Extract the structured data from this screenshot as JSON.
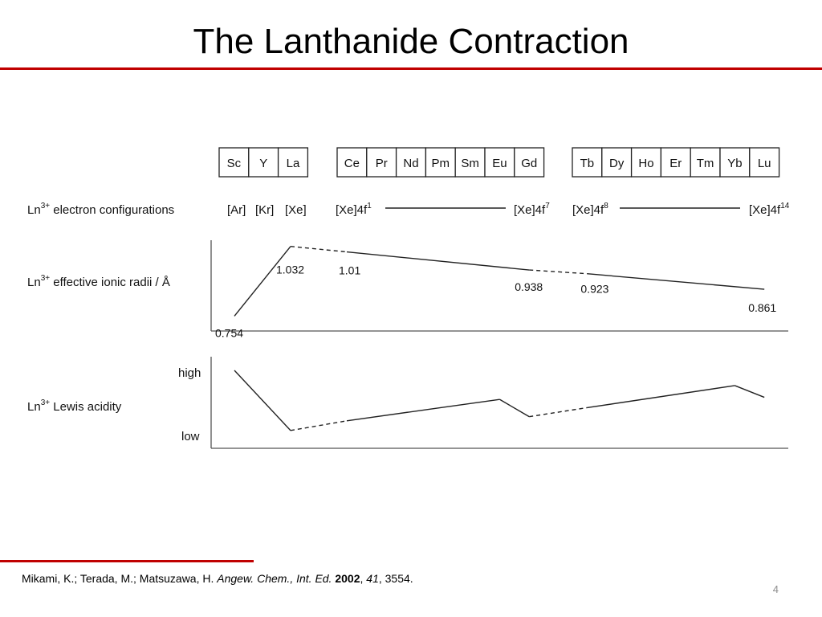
{
  "title": "The Lanthanide Contraction",
  "colors": {
    "accent": "#c00000",
    "axis": "#555555",
    "line": "#222222",
    "text": "#111111",
    "page_number": "#8c8c8c"
  },
  "element_groups": [
    {
      "name": "group3",
      "elements": [
        "Sc",
        "Y",
        "La"
      ]
    },
    {
      "name": "early-lanthanides",
      "elements": [
        "Ce",
        "Pr",
        "Nd",
        "Pm",
        "Sm",
        "Eu",
        "Gd"
      ]
    },
    {
      "name": "late-lanthanides",
      "elements": [
        "Tb",
        "Dy",
        "Ho",
        "Er",
        "Tm",
        "Yb",
        "Lu"
      ]
    }
  ],
  "rows": {
    "configurations": {
      "label": "Ln",
      "label_sup": "3+",
      "label_rest": " electron configurations"
    },
    "radii": {
      "label": "Ln",
      "label_sup": "3+",
      "label_rest": " effective ionic radii / Å"
    },
    "acidity": {
      "label": "Ln",
      "label_sup": "3+",
      "label_rest": " Lewis acidity",
      "high_label": "high",
      "low_label": "low"
    }
  },
  "configurations": [
    {
      "element": "Sc",
      "text": "[Ar]",
      "sup": ""
    },
    {
      "element": "Y",
      "text": "[Kr]",
      "sup": ""
    },
    {
      "element": "La",
      "text": "[Xe]",
      "sup": ""
    },
    {
      "element": "Ce",
      "text": "[Xe]4f",
      "sup": "1"
    },
    {
      "element": "Gd",
      "text": "[Xe]4f",
      "sup": "7"
    },
    {
      "element": "Tb",
      "text": "[Xe]4f",
      "sup": "8"
    },
    {
      "element": "Lu",
      "text": "[Xe]4f",
      "sup": "14"
    }
  ],
  "configuration_spans": [
    {
      "from": "Ce",
      "to": "Gd"
    },
    {
      "from": "Tb",
      "to": "Lu"
    }
  ],
  "chart_data": [
    {
      "type": "line",
      "ylabel": "Ln3+ effective ionic radii / Å",
      "categories": [
        "Sc",
        "Y",
        "La",
        "Ce",
        "Pr",
        "Nd",
        "Pm",
        "Sm",
        "Eu",
        "Gd",
        "Tb",
        "Dy",
        "Ho",
        "Er",
        "Tm",
        "Yb",
        "Lu"
      ],
      "ylim": [
        0.72,
        1.06
      ],
      "series": [
        {
          "points": [
            {
              "element": "Sc",
              "value": 0.754
            },
            {
              "element": "La",
              "value": 1.032
            },
            {
              "element": "Ce",
              "value": 1.01
            },
            {
              "element": "Gd",
              "value": 0.938
            },
            {
              "element": "Tb",
              "value": 0.923
            },
            {
              "element": "Lu",
              "value": 0.861
            }
          ]
        }
      ],
      "segments": [
        {
          "from": "Sc",
          "to": "La",
          "style": "solid"
        },
        {
          "from": "La",
          "to": "Ce",
          "style": "dashed"
        },
        {
          "from": "Ce",
          "to": "Gd",
          "style": "solid"
        },
        {
          "from": "Gd",
          "to": "Tb",
          "style": "dashed"
        },
        {
          "from": "Tb",
          "to": "Lu",
          "style": "solid"
        }
      ],
      "data_labels": [
        "0.754",
        "1.032",
        "1.01",
        "0.938",
        "0.923",
        "0.861"
      ]
    },
    {
      "type": "line",
      "ylabel": "Ln3+ Lewis acidity",
      "ytick_labels": [
        "low",
        "high"
      ],
      "categories": [
        "Sc",
        "Y",
        "La",
        "Ce",
        "Pr",
        "Nd",
        "Pm",
        "Sm",
        "Eu",
        "Gd",
        "Tb",
        "Dy",
        "Ho",
        "Er",
        "Tm",
        "Yb",
        "Lu"
      ],
      "ylim": [
        0,
        1
      ],
      "series": [
        {
          "points": [
            {
              "element": "Sc",
              "value": 0.93
            },
            {
              "element": "La",
              "value": 0.06
            },
            {
              "element": "Ce",
              "value": 0.2
            },
            {
              "element": "Eu",
              "value": 0.51
            },
            {
              "element": "Gd",
              "value": 0.26
            },
            {
              "element": "Tb",
              "value": 0.39
            },
            {
              "element": "Yb",
              "value": 0.71
            },
            {
              "element": "Lu",
              "value": 0.54
            }
          ]
        }
      ],
      "segments": [
        {
          "from": "Sc",
          "to": "La",
          "style": "solid"
        },
        {
          "from": "La",
          "to": "Ce",
          "style": "dashed"
        },
        {
          "from": "Ce",
          "to": "Eu",
          "style": "solid"
        },
        {
          "from": "Eu",
          "to": "Gd",
          "style": "solid"
        },
        {
          "from": "Gd",
          "to": "Tb",
          "style": "dashed"
        },
        {
          "from": "Tb",
          "to": "Yb",
          "style": "solid"
        },
        {
          "from": "Yb",
          "to": "Lu",
          "style": "solid"
        }
      ]
    }
  ],
  "citation": {
    "authors": "Mikami, K.; Terada, M.; Matsuzawa, H. ",
    "journal": "Angew. Chem., Int. Ed.",
    "space": " ",
    "year": "2002",
    "comma1": ", ",
    "volume": "41",
    "rest": ", 3554."
  },
  "page_number": "4"
}
